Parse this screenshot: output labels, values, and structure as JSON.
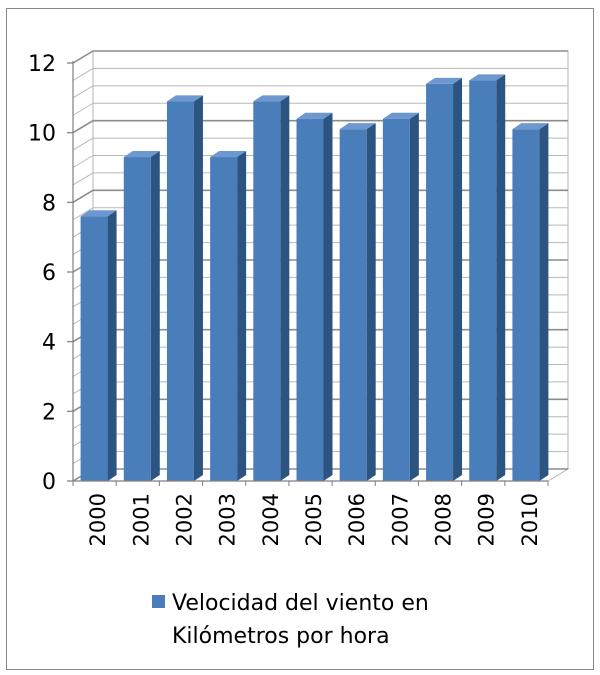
{
  "chart_data": {
    "type": "bar",
    "categories": [
      "2000",
      "2001",
      "2002",
      "2003",
      "2004",
      "2005",
      "2006",
      "2007",
      "2008",
      "2009",
      "2010"
    ],
    "series": [
      {
        "name": "Velocidad del viento en Kilómetros por hora",
        "values": [
          7.6,
          9.3,
          10.9,
          9.3,
          10.9,
          10.4,
          10.1,
          10.4,
          11.4,
          11.5,
          10.1
        ]
      }
    ],
    "yticks": [
      "0",
      "2",
      "4",
      "6",
      "8",
      "10",
      "12"
    ],
    "ylim": [
      0,
      12
    ],
    "grid": true,
    "legend_position": "bottom",
    "legend_lines": [
      "Velocidad del viento en",
      "Kilómetros por hora"
    ],
    "colors": {
      "bar_front": "#4a7ebb",
      "bar_side": "#2c5480",
      "bar_top": "#6d97cf",
      "grid": "#8c8c8c"
    }
  }
}
